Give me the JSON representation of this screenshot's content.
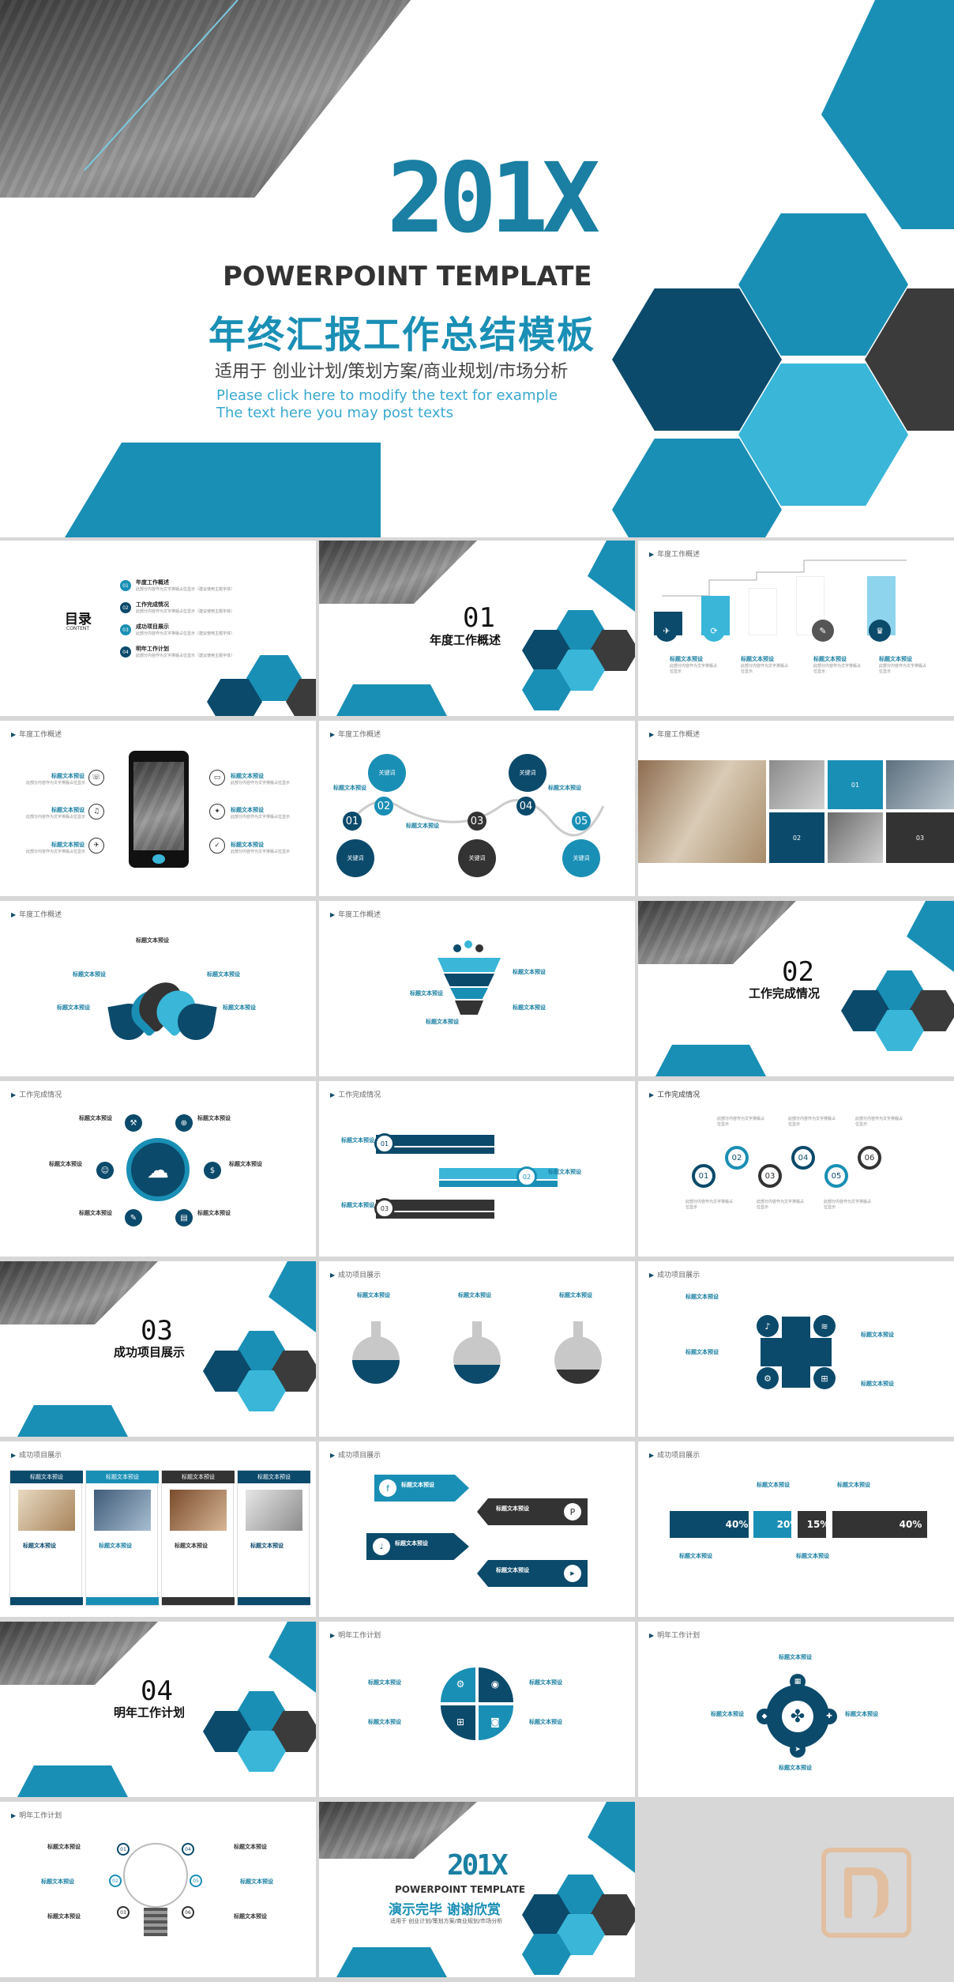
{
  "cover": {
    "year": "201X",
    "template": "POWERPOINT TEMPLATE",
    "title_cn": "年终汇报工作总结模板",
    "subtitle_cn": "适用于 创业计划/策划方案/商业规划/市场分析",
    "hint1": "Please click here to modify the text for example",
    "hint2": "The text here you may post texts"
  },
  "toc": {
    "title": "目录",
    "title_en": "CONTENT",
    "items": [
      {
        "n": "01",
        "label": "年度工作概述"
      },
      {
        "n": "02",
        "label": "工作完成情况"
      },
      {
        "n": "03",
        "label": "成功项目展示"
      },
      {
        "n": "04",
        "label": "明年工作计划"
      }
    ],
    "item_desc": "此部分内容作为文字排版占位显示（建议使用主题字体）"
  },
  "sections": [
    {
      "num": "01",
      "title": "年度工作概述"
    },
    {
      "num": "02",
      "title": "工作完成情况"
    },
    {
      "num": "03",
      "title": "成功项目展示"
    },
    {
      "num": "04",
      "title": "明年工作计划"
    }
  ],
  "headers": {
    "s1": "年度工作概述",
    "s2": "工作完成情况",
    "s3": "成功项目展示",
    "s4": "明年工作计划"
  },
  "common": {
    "placeholder_title": "标题文本预设",
    "placeholder_desc": "此部分内容作为文字排版占位显示",
    "keyword": "关键词"
  },
  "numbers": [
    "01",
    "02",
    "03",
    "04",
    "05",
    "06"
  ],
  "percents": [
    "40%",
    "20%",
    "15%",
    "40%"
  ],
  "ending": {
    "year": "201X",
    "template": "POWERPOINT TEMPLATE",
    "thanks": "演示完毕  谢谢欣赏",
    "subtitle": "适用于 创业计划/策划方案/商业规划/市场分析"
  },
  "colors": {
    "dark": "#0b4a6b",
    "blue": "#1a8fb5",
    "light": "#39b6d8",
    "gray": "#3b3b3b"
  }
}
